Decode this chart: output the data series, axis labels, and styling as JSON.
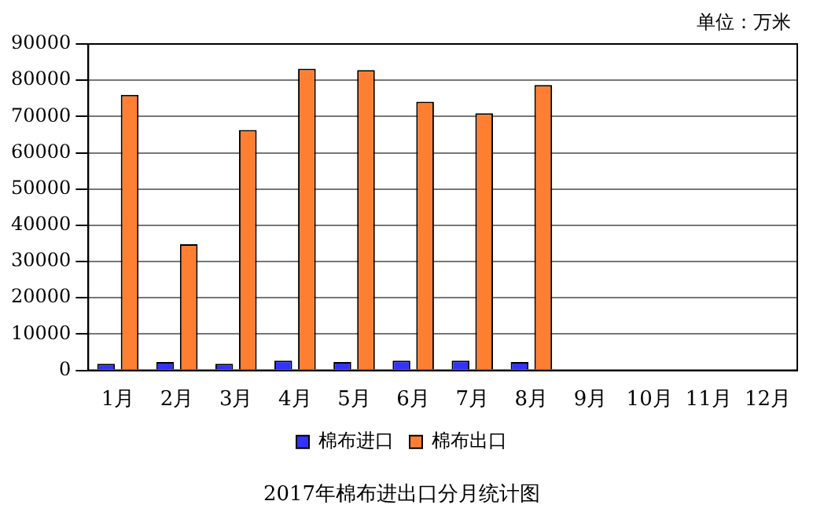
{
  "chart_data": {
    "type": "bar",
    "title": "2017年棉布进出口分月统计图",
    "annotations": [
      "单位：万米"
    ],
    "categories": [
      "1月",
      "2月",
      "3月",
      "4月",
      "5月",
      "6月",
      "7月",
      "8月",
      "9月",
      "10月",
      "11月",
      "12月"
    ],
    "series": [
      {
        "name": "棉布进口",
        "color": "#3333ff",
        "values": [
          1800,
          2300,
          1800,
          2700,
          2300,
          2700,
          2700,
          2300,
          null,
          null,
          null,
          null
        ]
      },
      {
        "name": "棉布出口",
        "color": "#ff7f32",
        "values": [
          76000,
          34800,
          66300,
          83200,
          82800,
          74100,
          70900,
          78700,
          null,
          null,
          null,
          null
        ]
      }
    ],
    "ylim": [
      0,
      90000
    ],
    "yticks": [
      0,
      10000,
      20000,
      30000,
      40000,
      50000,
      60000,
      70000,
      80000,
      90000
    ],
    "grid": "y",
    "legend": "bottom"
  }
}
